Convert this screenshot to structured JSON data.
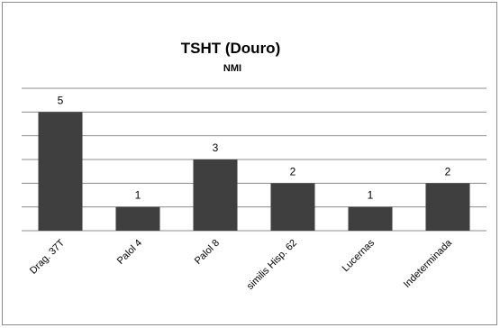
{
  "chart_data": {
    "type": "bar",
    "title": "TSHT (Douro)",
    "subtitle": "NMI",
    "categories": [
      "Drag. 37T",
      "Palol 4",
      "Palol 8",
      "similis Hisp. 62",
      "Lucernas",
      "Indeterminada"
    ],
    "values": [
      5,
      1,
      3,
      2,
      1,
      2
    ],
    "ylim": [
      0,
      6
    ],
    "ytick_step": 1,
    "grid": true,
    "xlabel": "",
    "ylabel": "",
    "legend": "none",
    "colors": {
      "bar": "#3f3f3f",
      "grid": "#8c8c8c"
    }
  }
}
